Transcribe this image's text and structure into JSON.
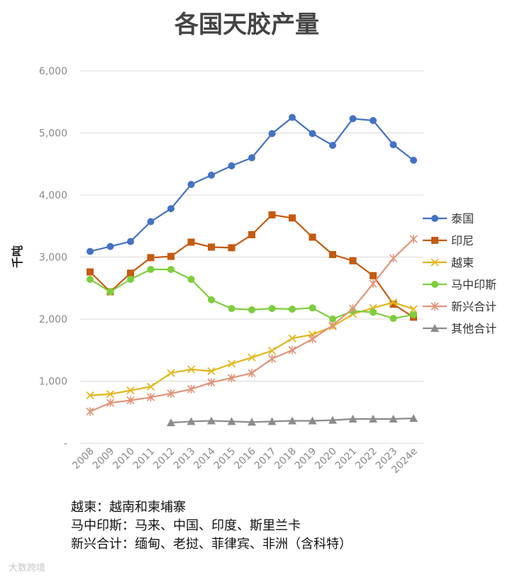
{
  "chart_data": {
    "type": "line",
    "title": "各国天胶产量",
    "xlabel": "",
    "ylabel": "千吨",
    "ylim": [
      0,
      6000
    ],
    "y_ticks": [
      "-",
      "1,000",
      "2,000",
      "3,000",
      "4,000",
      "5,000",
      "6,000"
    ],
    "grid": true,
    "legend_position": "right",
    "categories": [
      "2008",
      "2009",
      "2010",
      "2011",
      "2012",
      "2013",
      "2014",
      "2015",
      "2016",
      "2017",
      "2018",
      "2019",
      "2020",
      "2021",
      "2022",
      "2023",
      "2024e"
    ],
    "series": [
      {
        "name": "泰国",
        "color": "#4472C4",
        "marker": "circle",
        "values": [
          3090,
          3170,
          3250,
          3570,
          3780,
          4170,
          4320,
          4470,
          4600,
          4990,
          5250,
          4990,
          4800,
          5230,
          5200,
          4810,
          4560
        ]
      },
      {
        "name": "印尼",
        "color": "#C55A11",
        "marker": "square",
        "values": [
          2760,
          2440,
          2740,
          2990,
          3010,
          3240,
          3160,
          3150,
          3360,
          3680,
          3630,
          3320,
          3040,
          2940,
          2700,
          2240,
          2030
        ]
      },
      {
        "name": "越柬",
        "color": "#E3B51A",
        "marker": "x",
        "values": [
          770,
          790,
          850,
          910,
          1130,
          1190,
          1160,
          1280,
          1380,
          1490,
          1690,
          1750,
          1880,
          2080,
          2180,
          2270,
          2160
        ]
      },
      {
        "name": "马中印斯",
        "color": "#7DCE3C",
        "marker": "circle",
        "values": [
          2640,
          2440,
          2640,
          2800,
          2800,
          2640,
          2310,
          2170,
          2150,
          2170,
          2160,
          2180,
          2000,
          2130,
          2110,
          2010,
          2070
        ]
      },
      {
        "name": "新兴合计",
        "color": "#E0957A",
        "marker": "star",
        "values": [
          510,
          650,
          690,
          740,
          800,
          870,
          980,
          1050,
          1130,
          1360,
          1500,
          1680,
          1900,
          2170,
          2570,
          2980,
          3290
        ]
      },
      {
        "name": "其他合计",
        "color": "#8C8C8C",
        "marker": "triangle",
        "values": [
          null,
          null,
          null,
          null,
          330,
          350,
          360,
          350,
          340,
          350,
          360,
          360,
          370,
          390,
          390,
          390,
          400
        ]
      }
    ]
  },
  "notes": [
    "越柬：越南和柬埔寨",
    "马中印斯：马来、中国、印度、斯里兰卡",
    "新兴合计：缅甸、老挝、菲律宾、非洲（含科特）"
  ],
  "footer": "大数跨境"
}
